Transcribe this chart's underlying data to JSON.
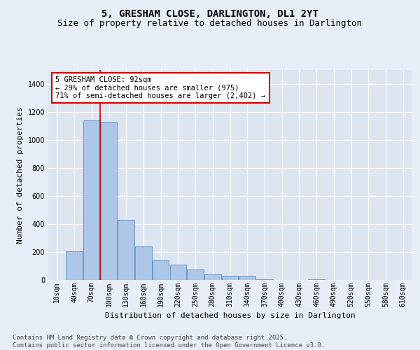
{
  "title": "5, GRESHAM CLOSE, DARLINGTON, DL1 2YT",
  "subtitle": "Size of property relative to detached houses in Darlington",
  "xlabel": "Distribution of detached houses by size in Darlington",
  "ylabel": "Number of detached properties",
  "categories": [
    "10sqm",
    "40sqm",
    "70sqm",
    "100sqm",
    "130sqm",
    "160sqm",
    "190sqm",
    "220sqm",
    "250sqm",
    "280sqm",
    "310sqm",
    "340sqm",
    "370sqm",
    "400sqm",
    "430sqm",
    "460sqm",
    "490sqm",
    "520sqm",
    "550sqm",
    "580sqm",
    "610sqm"
  ],
  "values": [
    0,
    205,
    1140,
    1130,
    430,
    240,
    140,
    110,
    75,
    40,
    30,
    30,
    5,
    0,
    0,
    5,
    0,
    0,
    0,
    0,
    0
  ],
  "bar_color": "#aec6e8",
  "bar_edge_color": "#5a8fc0",
  "background_color": "#dde6f0",
  "fig_background_color": "#e8eef8",
  "grid_color": "#ffffff",
  "ylim": [
    0,
    1500
  ],
  "yticks": [
    0,
    200,
    400,
    600,
    800,
    1000,
    1200,
    1400
  ],
  "vline_color": "#cc0000",
  "vline_x_index": 2.5,
  "annotation_text": "5 GRESHAM CLOSE: 92sqm\n← 29% of detached houses are smaller (975)\n71% of semi-detached houses are larger (2,402) →",
  "annotation_box_color": "#ffffff",
  "annotation_box_edge_color": "#cc0000",
  "footer_line1": "Contains HM Land Registry data © Crown copyright and database right 2025.",
  "footer_line2": "Contains public sector information licensed under the Open Government Licence v3.0.",
  "title_fontsize": 10,
  "subtitle_fontsize": 9,
  "axis_label_fontsize": 8,
  "tick_fontsize": 7,
  "annotation_fontsize": 7.5,
  "footer_fontsize": 6.5
}
